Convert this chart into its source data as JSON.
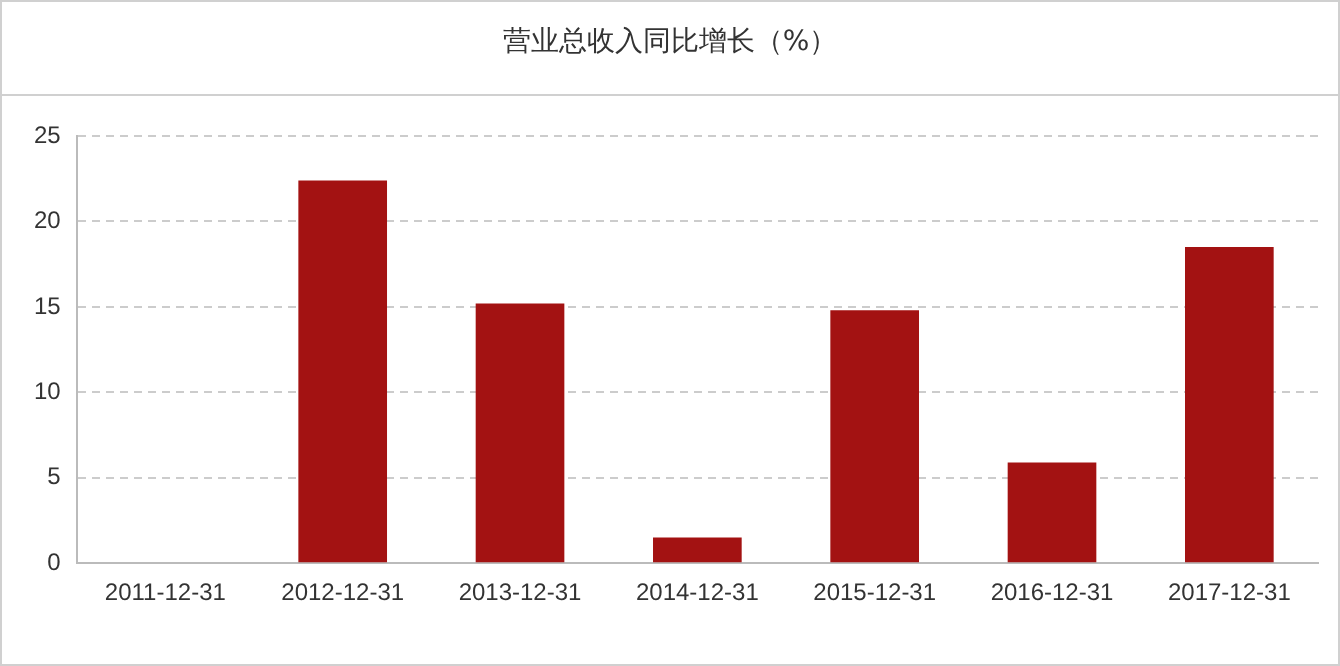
{
  "chart_data": {
    "type": "bar",
    "title": "营业总收入同比增长（%）",
    "categories": [
      "2011-12-31",
      "2012-12-31",
      "2013-12-31",
      "2014-12-31",
      "2015-12-31",
      "2016-12-31",
      "2017-12-31"
    ],
    "values": [
      0,
      22.4,
      15.2,
      1.5,
      14.8,
      5.9,
      18.5
    ],
    "color": "#a31212",
    "ylim": [
      0,
      25
    ],
    "yticks": [
      0,
      5,
      10,
      15,
      20,
      25
    ],
    "grid": "y",
    "legend": false
  }
}
